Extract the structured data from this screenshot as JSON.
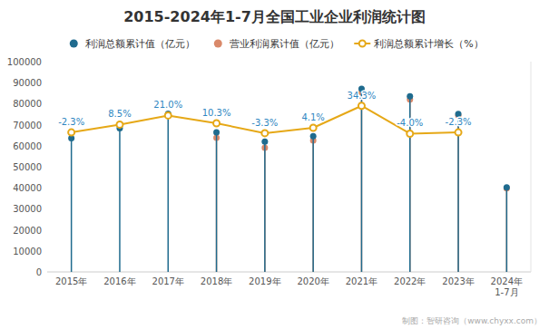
{
  "chart_data": {
    "type": "lollipop",
    "title": "2015-2024年1-7月全国工业企业利润统计图",
    "categories": [
      "2015年",
      "2016年",
      "2017年",
      "2018年",
      "2019年",
      "2020年",
      "2021年",
      "2022年",
      "2023年",
      "2024年\n1-7月"
    ],
    "series": [
      {
        "name": "利润总额累计值（亿元）",
        "color": "#1f6b8e",
        "marker": "circle",
        "values": [
          63554,
          68372,
          75187,
          66346,
          61936,
          64547,
          87092,
          83467,
          75065,
          40154
        ]
      },
      {
        "name": "营业利润累计值（亿元）",
        "color": "#d9896a",
        "marker": "circle",
        "values": [
          null,
          null,
          null,
          63800,
          59000,
          62500,
          85500,
          82000,
          74500,
          39800
        ]
      },
      {
        "name": "利润总额累计增长（%）",
        "type": "line",
        "axis": "y2",
        "color": "#e6a817",
        "marker": "circle",
        "data_labels": true,
        "values": [
          -2.3,
          8.5,
          21.0,
          10.3,
          -3.3,
          4.1,
          34.3,
          -4.0,
          -2.3,
          null
        ],
        "value_labels": [
          "-2.3%",
          "8.5%",
          "21.0%",
          "10.3%",
          "-3.3%",
          "4.1%",
          "34.3%",
          "-4.0%",
          "-2.3%",
          null
        ]
      }
    ],
    "ylim": [
      0,
      100000
    ],
    "yticks": [
      0,
      10000,
      20000,
      30000,
      40000,
      50000,
      60000,
      70000,
      80000,
      90000,
      100000
    ],
    "y2lim": [
      -194,
      95
    ],
    "y2ticks": [],
    "grid": false,
    "legend": "top",
    "annotations": [
      "制图：智研咨询（www.chyxx.com）"
    ]
  }
}
